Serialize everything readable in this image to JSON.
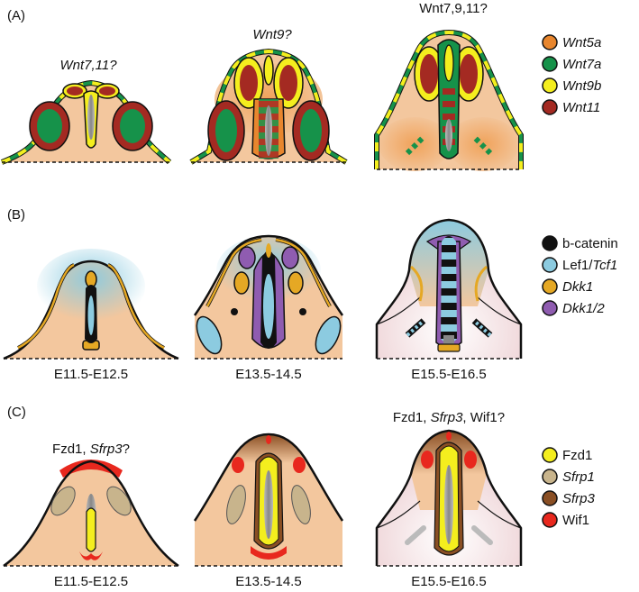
{
  "panels": {
    "a": {
      "label": "(A)",
      "captions": [
        "Wnt7,11?",
        "Wnt9?",
        "Wnt7,9,11?"
      ],
      "legend": [
        {
          "name": "Wnt5a",
          "color": "#e8862e",
          "italic": true
        },
        {
          "name": "Wnt7a",
          "color": "#16924a",
          "italic": true
        },
        {
          "name": "Wnt9b",
          "color": "#f4ee1e",
          "italic": true
        },
        {
          "name": "Wnt11",
          "color": "#a42a22",
          "italic": true
        }
      ]
    },
    "b": {
      "label": "(B)",
      "stages": [
        "E11.5-E12.5",
        "E13.5-14.5",
        "E15.5-E16.5"
      ],
      "legend": [
        {
          "name_plain": "b-catenin",
          "name_italic": "",
          "color": "#111111"
        },
        {
          "name_plain": "Lef1/",
          "name_italic": "Tcf1",
          "color": "#8ccbe0"
        },
        {
          "name_plain": "",
          "name_italic": "Dkk1",
          "color": "#e5a824"
        },
        {
          "name_plain": "",
          "name_italic": "Dkk1/2",
          "color": "#8f5cb0"
        }
      ]
    },
    "c": {
      "label": "(C)",
      "caption1": {
        "plain": "Fzd1, ",
        "italic": "Sfrp3",
        "tail": "?"
      },
      "caption3": {
        "plain": "Fzd1, ",
        "italic": "Sfrp3",
        "tail": ", Wif1?"
      },
      "stages": [
        "E11.5-E12.5",
        "E13.5-14.5",
        "E15.5-E16.5"
      ],
      "legend": [
        {
          "name": "Fzd1",
          "color": "#f4ee1e",
          "italic": false
        },
        {
          "name": "Sfrp1",
          "color": "#c8b48c",
          "italic": true
        },
        {
          "name": "Sfrp3",
          "color": "#8a4f24",
          "italic": true
        },
        {
          "name": "Wif1",
          "color": "#e8281e",
          "italic": false
        }
      ]
    }
  },
  "colors": {
    "tissue": "#f3c79e",
    "mesenchyme": "#f0a25a",
    "outline": "#111111",
    "pale": "#f3e6ea"
  }
}
